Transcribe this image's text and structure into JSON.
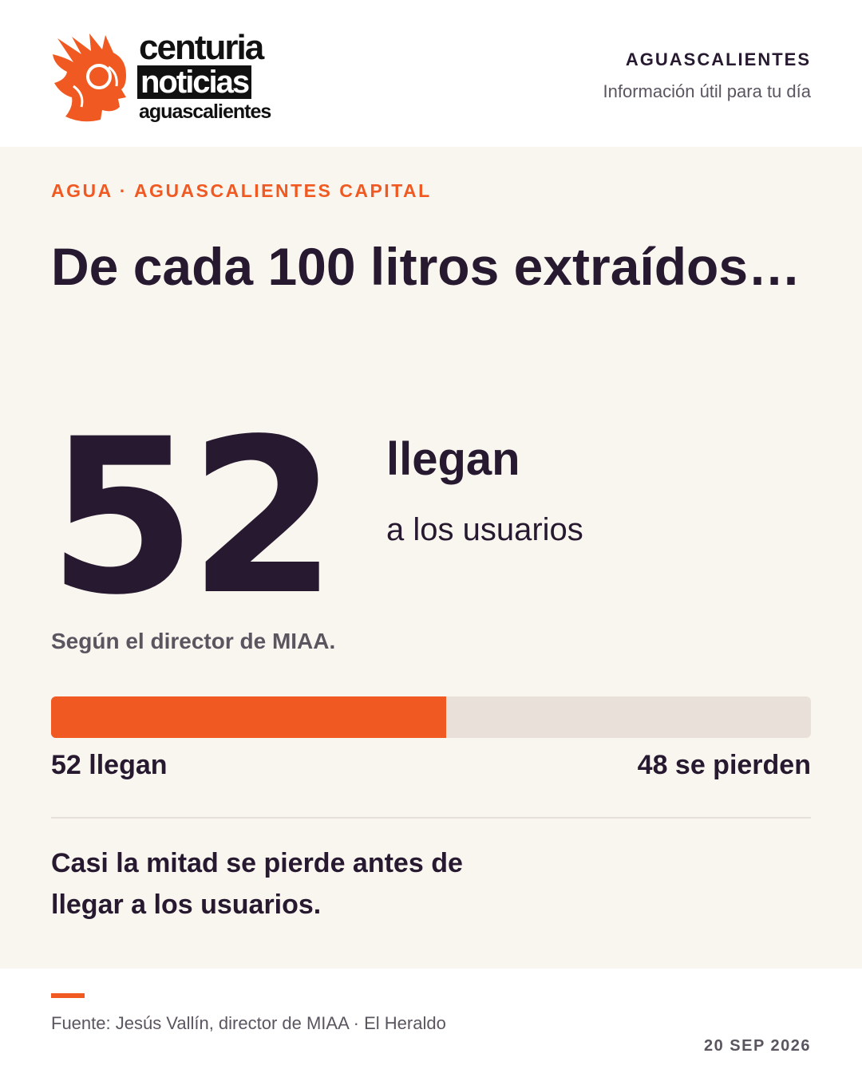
{
  "header": {
    "logo": {
      "line1": "centuria",
      "line2": "noticias",
      "line3": "aguascalientes"
    },
    "city": "AGUASCALIENTES",
    "tagline": "Información útil para tu día"
  },
  "main": {
    "kicker": "AGUA · AGUASCALIENTES CAPITAL",
    "headline": "De cada 100 litros extraídos…",
    "big_number": "52",
    "big_label": "llegan",
    "big_sublabel": "a los usuarios",
    "attribution": "Según el director de MIAA.",
    "bar": {
      "value": 52,
      "total": 100,
      "fill_color": "#f05a22",
      "track_color": "#e8e0d9"
    },
    "label_left": "52 llegan",
    "label_right": "48 se pierden",
    "conclusion": "Casi la mitad se pierde antes de llegar a los usuarios."
  },
  "footer": {
    "source": "Fuente: Jesús Vallín, director de MIAA · El Heraldo",
    "date": "20 SEP 2026"
  },
  "colors": {
    "accent": "#f05a22",
    "ink": "#271a30",
    "panel": "#f9f6f0"
  }
}
